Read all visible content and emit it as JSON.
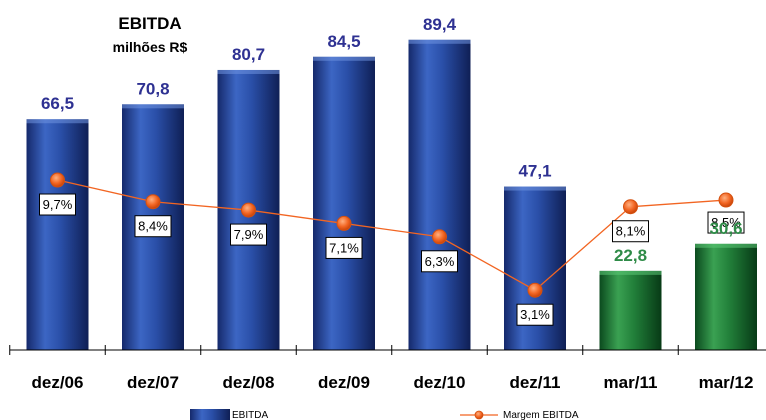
{
  "chart_data": {
    "type": "bar",
    "title": "EBITDA",
    "subtitle": "milhões R$",
    "categories": [
      "dez/06",
      "dez/07",
      "dez/08",
      "dez/09",
      "dez/10",
      "dez/11",
      "mar/11",
      "mar/12"
    ],
    "series": [
      {
        "name": "EBITDA",
        "type": "bar",
        "values": [
          66.5,
          70.8,
          80.7,
          84.5,
          89.4,
          47.1,
          22.8,
          30.6
        ],
        "value_labels": [
          "66,5",
          "70,8",
          "80,7",
          "84,5",
          "89,4",
          "47,1",
          "22,8",
          "30,6"
        ],
        "colors": [
          "#1f3d8c",
          "#1f3d8c",
          "#1f3d8c",
          "#1f3d8c",
          "#1f3d8c",
          "#1f3d8c",
          "#1e7a34",
          "#1e7a34"
        ],
        "label_colors": [
          "#2e3192",
          "#2e3192",
          "#2e3192",
          "#2e3192",
          "#2e3192",
          "#2e3192",
          "#2e8b47",
          "#2e8b47"
        ]
      },
      {
        "name": "Margem EBITDA",
        "type": "line",
        "values": [
          9.7,
          8.4,
          7.9,
          7.1,
          6.3,
          3.1,
          8.1,
          8.5
        ],
        "value_labels": [
          "9,7%",
          "8,4%",
          "7,9%",
          "7,1%",
          "6,3%",
          "3,1%",
          "8,1%",
          "8,5%"
        ],
        "color": "#f26522"
      }
    ],
    "legend_position": "bottom",
    "grid": false
  }
}
